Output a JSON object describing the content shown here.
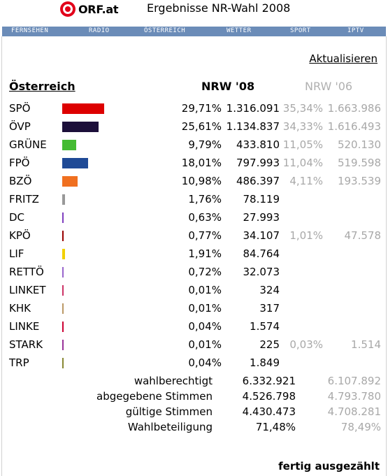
{
  "header": {
    "logo_text": "ORF.at",
    "title": "Ergebnisse NR-Wahl 2008"
  },
  "nav": [
    "FERNSEHEN",
    "RADIO",
    "ÖSTERREICH",
    "WETTER",
    "SPORT",
    "IPTV"
  ],
  "refresh_label": "Aktualisieren",
  "table_header": {
    "region": "Österreich",
    "current": "NRW '08",
    "previous": "NRW '06"
  },
  "results": [
    {
      "party": "SPÖ",
      "pct": "29,71%",
      "votes": "1.316.091",
      "prev_pct": "35,34%",
      "prev_votes": "1.663.986",
      "share": 29.71,
      "color": "#dd0000"
    },
    {
      "party": "ÖVP",
      "pct": "25,61%",
      "votes": "1.134.837",
      "prev_pct": "34,33%",
      "prev_votes": "1.616.493",
      "share": 25.61,
      "color": "#1c0f3a"
    },
    {
      "party": "GRÜNE",
      "pct": "9,79%",
      "votes": "433.810",
      "prev_pct": "11,05%",
      "prev_votes": "520.130",
      "share": 9.79,
      "color": "#44bb33"
    },
    {
      "party": "FPÖ",
      "pct": "18,01%",
      "votes": "797.993",
      "prev_pct": "11,04%",
      "prev_votes": "519.598",
      "share": 18.01,
      "color": "#1f4a96"
    },
    {
      "party": "BZÖ",
      "pct": "10,98%",
      "votes": "486.397",
      "prev_pct": "4,11%",
      "prev_votes": "193.539",
      "share": 10.98,
      "color": "#f07020"
    },
    {
      "party": "FRITZ",
      "pct": "1,76%",
      "votes": "78.119",
      "prev_pct": "",
      "prev_votes": "",
      "share": 1.76,
      "color": "#999999"
    },
    {
      "party": "DC",
      "pct": "0,63%",
      "votes": "27.993",
      "prev_pct": "",
      "prev_votes": "",
      "share": 0.63,
      "color": "#7f3fbf"
    },
    {
      "party": "KPÖ",
      "pct": "0,77%",
      "votes": "34.107",
      "prev_pct": "1,01%",
      "prev_votes": "47.578",
      "share": 0.77,
      "color": "#990000"
    },
    {
      "party": "LIF",
      "pct": "1,91%",
      "votes": "84.764",
      "prev_pct": "",
      "prev_votes": "",
      "share": 1.91,
      "color": "#f2d000"
    },
    {
      "party": "RETTÖ",
      "pct": "0,72%",
      "votes": "32.073",
      "prev_pct": "",
      "prev_votes": "",
      "share": 0.72,
      "color": "#9966cc"
    },
    {
      "party": "LINKET",
      "pct": "0,01%",
      "votes": "324",
      "prev_pct": "",
      "prev_votes": "",
      "share": 0.01,
      "color": "#cc3366"
    },
    {
      "party": "KHK",
      "pct": "0,01%",
      "votes": "317",
      "prev_pct": "",
      "prev_votes": "",
      "share": 0.01,
      "color": "#bb9966"
    },
    {
      "party": "LINKE",
      "pct": "0,04%",
      "votes": "1.574",
      "prev_pct": "",
      "prev_votes": "",
      "share": 0.04,
      "color": "#cc0033"
    },
    {
      "party": "STARK",
      "pct": "0,01%",
      "votes": "225",
      "prev_pct": "0,03%",
      "prev_votes": "1.514",
      "share": 0.01,
      "color": "#993399"
    },
    {
      "party": "TRP",
      "pct": "0,04%",
      "votes": "1.849",
      "prev_pct": "",
      "prev_votes": "",
      "share": 0.04,
      "color": "#888833"
    }
  ],
  "summary": [
    {
      "label": "wahlberechtigt",
      "current": "6.332.921",
      "previous": "6.107.892"
    },
    {
      "label": "abgegebene Stimmen",
      "current": "4.526.798",
      "previous": "4.793.780"
    },
    {
      "label": "gültige Stimmen",
      "current": "4.430.473",
      "previous": "4.708.281"
    },
    {
      "label": "Wahlbeteiligung",
      "current": "71,48%",
      "previous": "78,49%"
    }
  ],
  "status": "fertig ausgezählt"
}
